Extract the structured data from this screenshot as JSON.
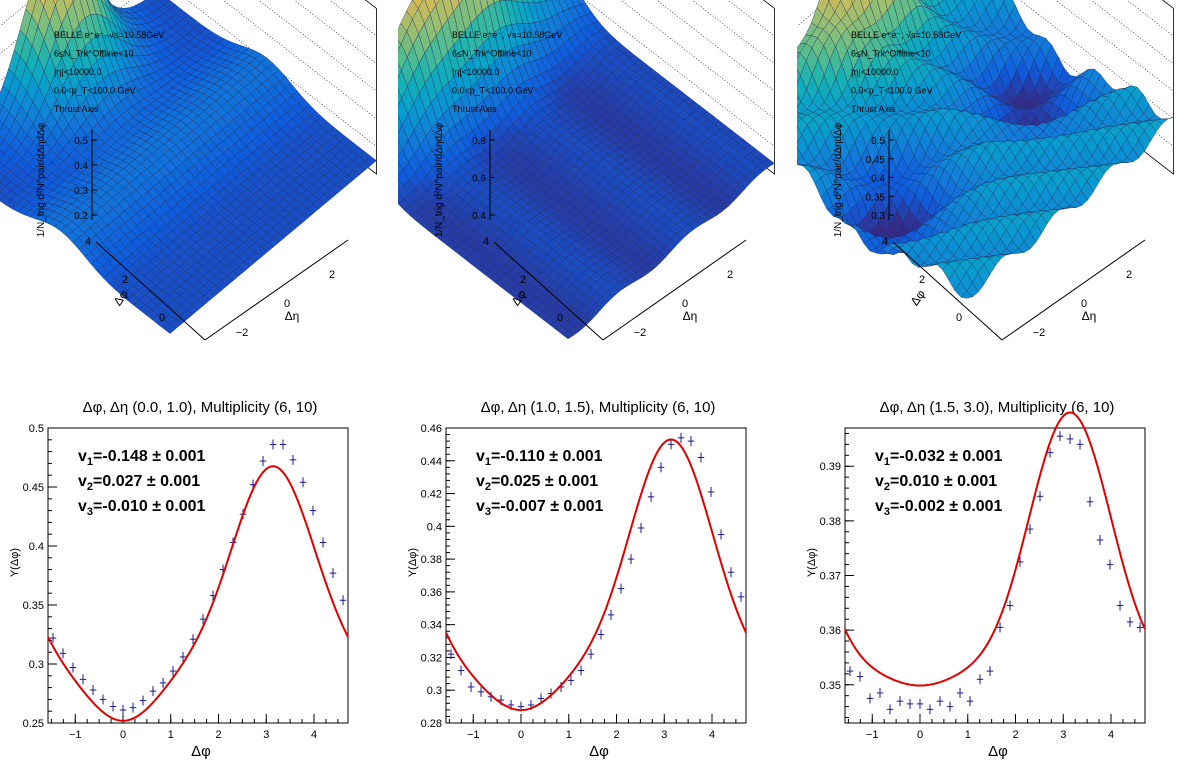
{
  "surface_panels": [
    {
      "labels": [
        "BELLE e⁺e⁻, √s=10.58GeV",
        "6≤N_Trk^Offline<10",
        "|η|<10000.0",
        "0.0<p_T<100.0 GeV",
        "Thrust Axis"
      ],
      "zlabel": "1/N_trig d²N^pair/dΔηdΔφ",
      "xlabel": "Δφ",
      "ylabel": "Δη",
      "zticks": [
        "0.5",
        "0.4",
        "0.3",
        "0.2"
      ],
      "xticks": [
        "4",
        "2",
        "0"
      ],
      "yticks": [
        "2",
        "0",
        "−2"
      ]
    },
    {
      "labels": [
        "BELLE e⁺e⁻, √s=10.58GeV",
        "6≤N_Trk^Offline<10",
        "|η|<10000.0",
        "0.0<p_T<100.0 GeV",
        "Thrust Axis"
      ],
      "zlabel": "1/N_trig d²N^pair/dΔηdΔφ",
      "xlabel": "Δφ",
      "ylabel": "Δη",
      "zticks": [
        "0.8",
        "0.6",
        "0.4"
      ],
      "xticks": [
        "4",
        "2",
        "0"
      ],
      "yticks": [
        "2",
        "0",
        "−2"
      ]
    },
    {
      "labels": [
        "BELLE e⁺e⁻, √s=10.58GeV",
        "6≤N_Trk^Offline<10",
        "|η|<10000.0",
        "0.0<p_T<100.0 GeV",
        "Thrust Axis"
      ],
      "zlabel": "1/N_trig d²N^pair/dΔηdΔφ",
      "xlabel": "Δφ",
      "ylabel": "Δη",
      "zticks": [
        "0.5",
        "0.45",
        "0.4",
        "0.35",
        "0.3"
      ],
      "xticks": [
        "4",
        "2",
        "0"
      ],
      "yticks": [
        "2",
        "0",
        "−2"
      ]
    }
  ],
  "chart_data": [
    {
      "type": "scatter",
      "title": "Δφ, Δη (0.0, 1.0), Multiplicity (6, 10)",
      "xlabel": "Δφ",
      "ylabel": "Y(Δφ)",
      "xlim": [
        -1.571,
        4.712
      ],
      "ylim": [
        0.25,
        0.5
      ],
      "xticks": [
        -1,
        0,
        1,
        2,
        3,
        4
      ],
      "yticks": [
        0.25,
        0.3,
        0.35,
        0.4,
        0.45,
        0.5
      ],
      "ytick_labels": [
        "0.25",
        "0.3",
        "0.35",
        "0.4",
        "0.45",
        "0.5"
      ],
      "fit": {
        "a0": 0.3413,
        "v1": -0.148,
        "v2": 0.027,
        "v3": -0.01
      },
      "annotations": [
        {
          "sub": "1",
          "val": "-0.148",
          "err": "0.001"
        },
        {
          "sub": "2",
          "val": "0.027",
          "err": "0.001"
        },
        {
          "sub": "3",
          "val": "-0.010",
          "err": "0.001"
        }
      ],
      "points": {
        "x": [
          -1.466,
          -1.257,
          -1.047,
          -0.838,
          -0.628,
          -0.419,
          -0.209,
          0.0,
          0.209,
          0.419,
          0.628,
          0.838,
          1.047,
          1.257,
          1.466,
          1.676,
          1.885,
          2.094,
          2.304,
          2.513,
          2.723,
          2.932,
          3.142,
          3.351,
          3.56,
          3.77,
          3.979,
          4.189,
          4.398,
          4.608
        ],
        "y": [
          0.322,
          0.309,
          0.297,
          0.287,
          0.278,
          0.27,
          0.264,
          0.261,
          0.263,
          0.269,
          0.277,
          0.284,
          0.294,
          0.306,
          0.321,
          0.338,
          0.358,
          0.38,
          0.403,
          0.427,
          0.452,
          0.472,
          0.486,
          0.486,
          0.473,
          0.454,
          0.43,
          0.403,
          0.377,
          0.354
        ]
      }
    },
    {
      "type": "scatter",
      "title": "Δφ, Δη (1.0, 1.5), Multiplicity (6, 10)",
      "xlabel": "Δφ",
      "ylabel": "Y(Δφ)",
      "xlim": [
        -1.571,
        4.712
      ],
      "ylim": [
        0.28,
        0.46
      ],
      "xticks": [
        -1,
        0,
        1,
        2,
        3,
        4
      ],
      "yticks": [
        0.28,
        0.3,
        0.32,
        0.34,
        0.36,
        0.38,
        0.4,
        0.42,
        0.44,
        0.46
      ],
      "ytick_labels": [
        "0.28",
        "0.3",
        "0.32",
        "0.34",
        "0.36",
        "0.38",
        "0.4",
        "0.42",
        "0.44",
        "0.46"
      ],
      "fit": {
        "a0": 0.3528,
        "v1": -0.11,
        "v2": 0.025,
        "v3": -0.007
      },
      "annotations": [
        {
          "sub": "1",
          "val": "-0.110",
          "err": "0.001"
        },
        {
          "sub": "2",
          "val": "0.025",
          "err": "0.001"
        },
        {
          "sub": "3",
          "val": "-0.007",
          "err": "0.001"
        }
      ],
      "points": {
        "x": [
          -1.466,
          -1.257,
          -1.047,
          -0.838,
          -0.628,
          -0.419,
          -0.209,
          0.0,
          0.209,
          0.419,
          0.628,
          0.838,
          1.047,
          1.257,
          1.466,
          1.676,
          1.885,
          2.094,
          2.304,
          2.513,
          2.723,
          2.932,
          3.142,
          3.351,
          3.56,
          3.77,
          3.979,
          4.189,
          4.398,
          4.608
        ],
        "y": [
          0.322,
          0.312,
          0.302,
          0.299,
          0.296,
          0.294,
          0.291,
          0.29,
          0.291,
          0.295,
          0.298,
          0.302,
          0.306,
          0.312,
          0.322,
          0.334,
          0.346,
          0.362,
          0.38,
          0.399,
          0.418,
          0.436,
          0.45,
          0.454,
          0.452,
          0.442,
          0.421,
          0.395,
          0.372,
          0.357
        ]
      }
    },
    {
      "type": "scatter",
      "title": "Δφ, Δη (1.5, 3.0), Multiplicity (6, 10)",
      "xlabel": "Δφ",
      "ylabel": "Y(Δφ)",
      "xlim": [
        -1.571,
        4.712
      ],
      "ylim": [
        0.343,
        0.397
      ],
      "xticks": [
        -1,
        0,
        1,
        2,
        3,
        4
      ],
      "yticks": [
        0.35,
        0.36,
        0.37,
        0.38,
        0.39
      ],
      "ytick_labels": [
        "0.35",
        "0.36",
        "0.37",
        "0.38",
        "0.39"
      ],
      "fit": {
        "a0": 0.3675,
        "v1": -0.032,
        "v2": 0.01,
        "v3": -0.002
      },
      "annotations": [
        {
          "sub": "1",
          "val": "-0.032",
          "err": "0.001"
        },
        {
          "sub": "2",
          "val": "0.010",
          "err": "0.001"
        },
        {
          "sub": "3",
          "val": "-0.002",
          "err": "0.001"
        }
      ],
      "points": {
        "x": [
          -1.466,
          -1.257,
          -1.047,
          -0.838,
          -0.628,
          -0.419,
          -0.209,
          0.0,
          0.209,
          0.419,
          0.628,
          0.838,
          1.047,
          1.257,
          1.466,
          1.676,
          1.885,
          2.094,
          2.304,
          2.513,
          2.723,
          2.932,
          3.142,
          3.351,
          3.56,
          3.77,
          3.979,
          4.189,
          4.398,
          4.608
        ],
        "y": [
          0.3525,
          0.3515,
          0.3475,
          0.3485,
          0.3455,
          0.347,
          0.3465,
          0.3465,
          0.3455,
          0.347,
          0.346,
          0.3485,
          0.347,
          0.351,
          0.3525,
          0.3605,
          0.3645,
          0.3725,
          0.3785,
          0.3845,
          0.3925,
          0.3955,
          0.395,
          0.394,
          0.3835,
          0.3765,
          0.372,
          0.3645,
          0.3615,
          0.3605
        ]
      }
    }
  ]
}
